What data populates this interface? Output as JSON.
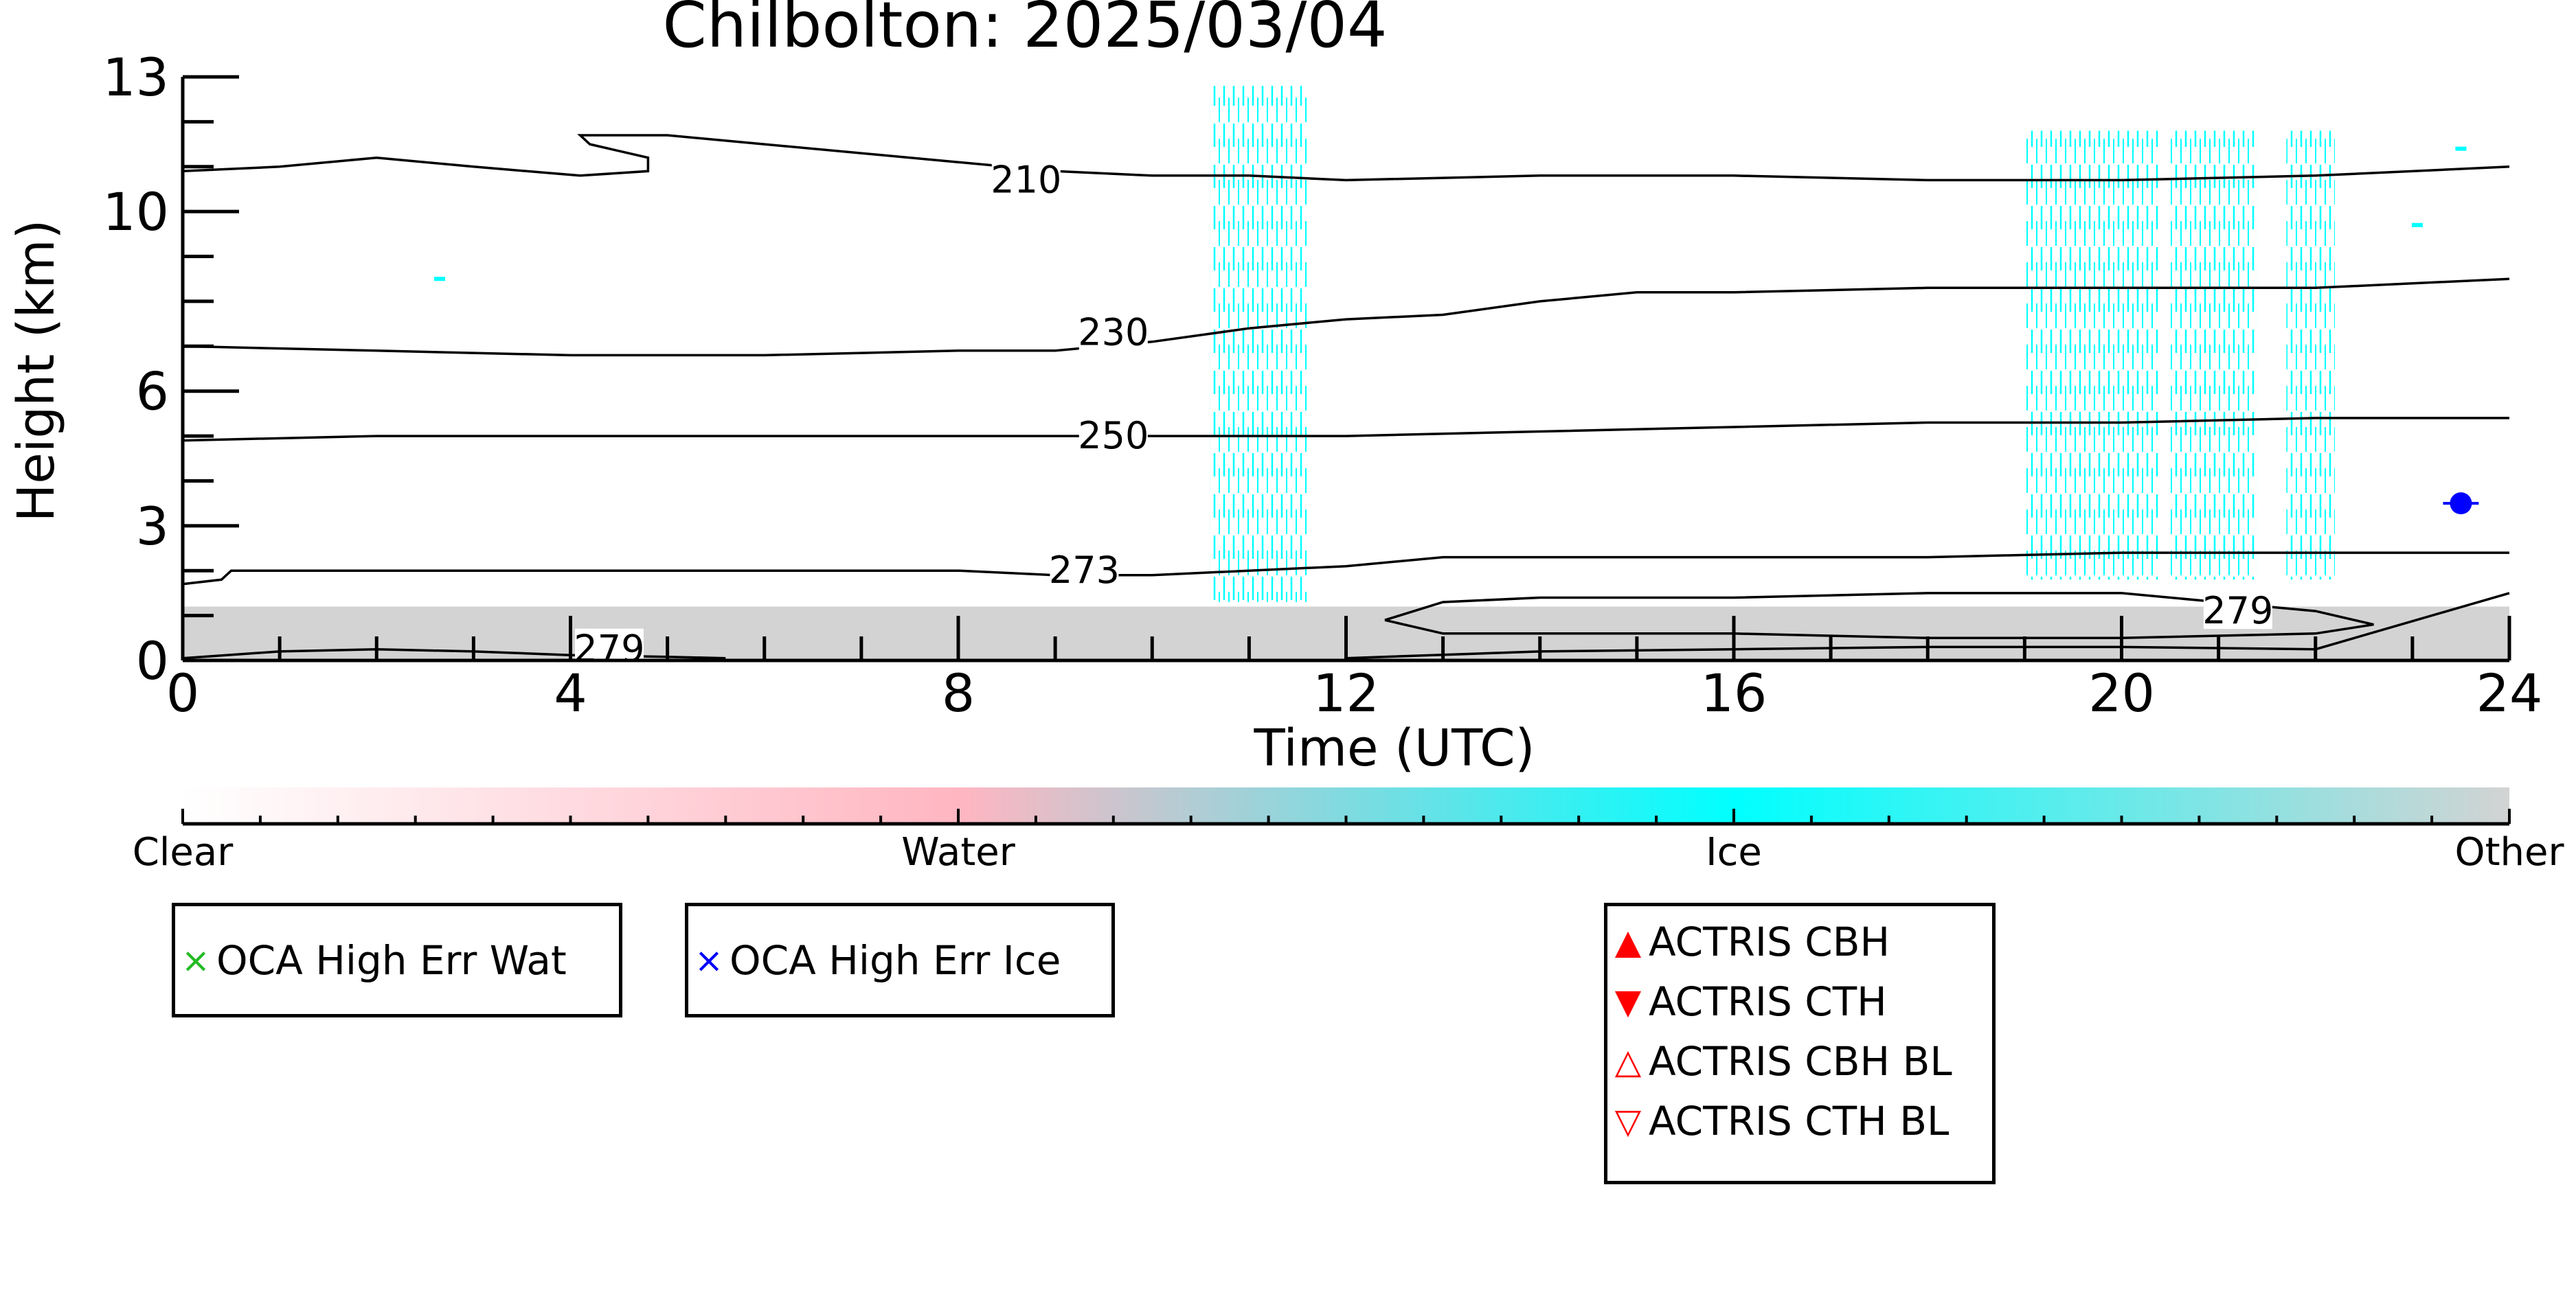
{
  "chart_data": {
    "type": "heatmap",
    "title": "Chilbolton: 2025/03/04",
    "xlabel": "Time (UTC)",
    "ylabel": "Height (km)",
    "xlim": [
      0,
      24
    ],
    "ylim": [
      0,
      13
    ],
    "xticks": [
      0,
      4,
      8,
      12,
      16,
      20,
      24
    ],
    "yticks": [
      0,
      3,
      6,
      10,
      13
    ],
    "grid": false,
    "colorbar": {
      "labels": [
        "Clear",
        "Water",
        "Ice",
        "Other"
      ],
      "colors": {
        "Clear": "#ffffff",
        "Water": "#ffb6c1",
        "Ice": "#00ffff",
        "Other": "#d3d3d3"
      }
    },
    "temperature_contours": [
      {
        "label": "210",
        "x": [
          0,
          1,
          2,
          3,
          4.1,
          4.8,
          4.8,
          4.2,
          4.1,
          5.0,
          6,
          8,
          9,
          10,
          11,
          12,
          14,
          16,
          18,
          20,
          22,
          24
        ],
        "y": [
          10.9,
          11.0,
          11.2,
          11.0,
          10.8,
          10.9,
          11.2,
          11.5,
          11.7,
          11.7,
          11.5,
          11.1,
          10.9,
          10.8,
          10.8,
          10.7,
          10.8,
          10.8,
          10.7,
          10.7,
          10.8,
          11.0
        ]
      },
      {
        "label": "230",
        "x": [
          0,
          2,
          4,
          6,
          8,
          9,
          10,
          11,
          12,
          13,
          14,
          15,
          16,
          18,
          20,
          22,
          24
        ],
        "y": [
          7.0,
          6.9,
          6.8,
          6.8,
          6.9,
          6.9,
          7.1,
          7.4,
          7.6,
          7.7,
          8.0,
          8.2,
          8.2,
          8.3,
          8.3,
          8.3,
          8.5
        ]
      },
      {
        "label": "250",
        "x": [
          0,
          2,
          4,
          6,
          8,
          10,
          12,
          14,
          16,
          18,
          20,
          22,
          24
        ],
        "y": [
          4.9,
          5.0,
          5.0,
          5.0,
          5.0,
          5.0,
          5.0,
          5.1,
          5.2,
          5.3,
          5.3,
          5.4,
          5.4
        ]
      },
      {
        "label": "273",
        "x": [
          0,
          0.4,
          0.5,
          2,
          4,
          6,
          8,
          9,
          10,
          11,
          12,
          13,
          14,
          16,
          18,
          20,
          22,
          24
        ],
        "y": [
          1.7,
          1.8,
          2.0,
          2.0,
          2.0,
          2.0,
          2.0,
          1.9,
          1.9,
          2.0,
          2.1,
          2.3,
          2.3,
          2.3,
          2.3,
          2.4,
          2.4,
          2.4
        ]
      },
      {
        "label": "279",
        "x": [
          12.4,
          13,
          14,
          16,
          18,
          20,
          21,
          22,
          22.6,
          22,
          20,
          18,
          16,
          14,
          13,
          12.4
        ],
        "y": [
          0.9,
          1.3,
          1.4,
          1.4,
          1.5,
          1.5,
          1.3,
          1.1,
          0.8,
          0.6,
          0.5,
          0.5,
          0.6,
          0.6,
          0.6,
          0.9
        ]
      },
      {
        "label": "279",
        "x": [
          0,
          1,
          2,
          3,
          4,
          5,
          5.6
        ],
        "y": [
          0.05,
          0.2,
          0.25,
          0.2,
          0.12,
          0.08,
          0.05
        ]
      },
      {
        "label": "",
        "x": [
          12,
          14,
          16,
          18,
          20,
          22,
          24
        ],
        "y": [
          0.05,
          0.2,
          0.25,
          0.3,
          0.3,
          0.25,
          1.5
        ]
      }
    ],
    "contour_labels": [
      {
        "text": "210",
        "x": 8.7,
        "y": 10.7
      },
      {
        "text": "230",
        "x": 9.6,
        "y": 7.3
      },
      {
        "text": "250",
        "x": 9.6,
        "y": 5.0
      },
      {
        "text": "273",
        "x": 9.3,
        "y": 2.0
      },
      {
        "text": "279",
        "x": 21.2,
        "y": 1.1
      },
      {
        "text": "279",
        "x": 4.4,
        "y": 0.25
      }
    ],
    "classification_regions": [
      {
        "class": "Other",
        "x": [
          0,
          24
        ],
        "y": [
          0,
          1.2
        ]
      },
      {
        "class": "Ice",
        "x": [
          10.6,
          11.6
        ],
        "y": [
          1.3,
          12.8
        ]
      },
      {
        "class": "Ice",
        "x": [
          19.0,
          20.4
        ],
        "y": [
          1.8,
          11.8
        ]
      },
      {
        "class": "Ice",
        "x": [
          20.5,
          21.4
        ],
        "y": [
          1.8,
          11.8
        ]
      },
      {
        "class": "Ice",
        "x": [
          21.7,
          22.2
        ],
        "y": [
          1.8,
          11.8
        ]
      }
    ],
    "ice_specks": [
      {
        "x": 2.65,
        "y": 8.5
      },
      {
        "x": 23.5,
        "y": 11.4
      },
      {
        "x": 23.05,
        "y": 9.7
      }
    ],
    "point_marker": {
      "name": "OCA High Err Ice",
      "x": 23.5,
      "y": 3.5,
      "yerr": 0.15,
      "color": "#0000ff"
    },
    "legends": [
      {
        "entries": [
          {
            "marker": "×",
            "label": "OCA High Err Wat",
            "color": "#22bb22"
          }
        ]
      },
      {
        "entries": [
          {
            "marker": "×",
            "label": "OCA High Err Ice",
            "color": "#0000ff"
          }
        ]
      },
      {
        "entries": [
          {
            "marker": "▲",
            "label": "ACTRIS CBH",
            "color": "#ff0000"
          },
          {
            "marker": "▼",
            "label": "ACTRIS CTH",
            "color": "#ff0000"
          },
          {
            "marker": "△",
            "label": "ACTRIS CBH BL",
            "color": "#ff0000"
          },
          {
            "marker": "▽",
            "label": "ACTRIS CTH BL",
            "color": "#ff0000"
          }
        ]
      }
    ]
  }
}
